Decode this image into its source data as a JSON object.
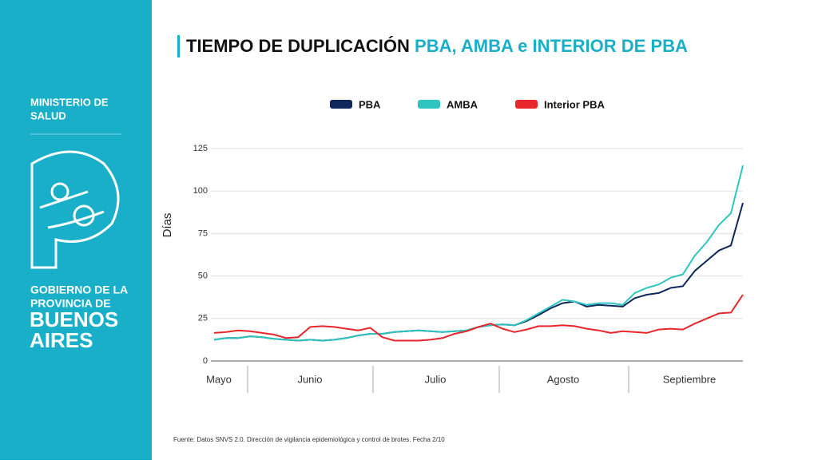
{
  "sidebar": {
    "ministry": [
      "MINISTERIO DE",
      "SALUD"
    ],
    "government": [
      "GOBIERNO DE LA",
      "PROVINCIA DE"
    ],
    "province": [
      "BUENOS",
      "AIRES"
    ]
  },
  "header": {
    "title_main": "TIEMPO DE DUPLICACIÓN",
    "title_highlight": "PBA, AMBA e INTERIOR DE PBA"
  },
  "chart_data": {
    "type": "line",
    "y_label": "Días",
    "x_axis_labels": [
      "Mayo",
      "Junio",
      "Julio",
      "Agosto",
      "Septiembre"
    ],
    "ylim": [
      0,
      125
    ],
    "yticks": [
      0,
      25,
      50,
      75,
      100,
      125
    ],
    "grid": true,
    "legend": "top",
    "series": [
      {
        "name": "PBA",
        "color": "#10275a",
        "values": [
          12.5,
          13.5,
          13.5,
          14.5,
          14,
          13,
          12.5,
          12,
          12.5,
          12,
          12.5,
          13.5,
          15,
          16,
          16,
          17,
          17.5,
          18,
          17.5,
          17,
          17.5,
          18,
          20,
          21,
          21.5,
          21,
          23.5,
          27,
          31,
          34,
          35,
          32,
          33,
          32.5,
          32,
          37,
          39,
          40,
          43,
          44,
          53,
          59,
          65,
          68,
          93
        ]
      },
      {
        "name": "AMBA",
        "color": "#2ec4c0",
        "values": [
          12.5,
          13.5,
          13.5,
          14.5,
          14,
          13,
          12.5,
          12,
          12.5,
          12,
          12.5,
          13.5,
          15,
          16,
          16,
          17,
          17.5,
          18,
          17.5,
          17,
          17.5,
          18,
          20,
          21,
          21.5,
          21,
          24,
          28,
          32,
          36,
          35,
          33,
          34,
          34,
          33,
          40,
          43,
          45,
          49,
          51,
          62,
          70,
          80,
          87,
          115
        ]
      },
      {
        "name": "Interior PBA",
        "color": "#e8262b",
        "values": [
          16.5,
          17,
          18,
          17.5,
          16.5,
          15.5,
          13.5,
          14,
          20,
          20.5,
          20,
          19,
          18,
          19.5,
          14,
          12,
          12,
          12,
          12.5,
          13.5,
          16,
          17.5,
          20,
          22,
          19,
          17,
          18.5,
          20.5,
          20.5,
          21,
          20.5,
          19,
          18,
          16.5,
          17.5,
          17,
          16.5,
          18.5,
          19,
          18.5,
          22,
          25,
          28,
          28.5,
          39
        ]
      }
    ]
  },
  "footer": "Fuente: Datos SNVS 2.0. Dirección de vigilancia epidemiológica y control de brotes. Fecha 2/10"
}
